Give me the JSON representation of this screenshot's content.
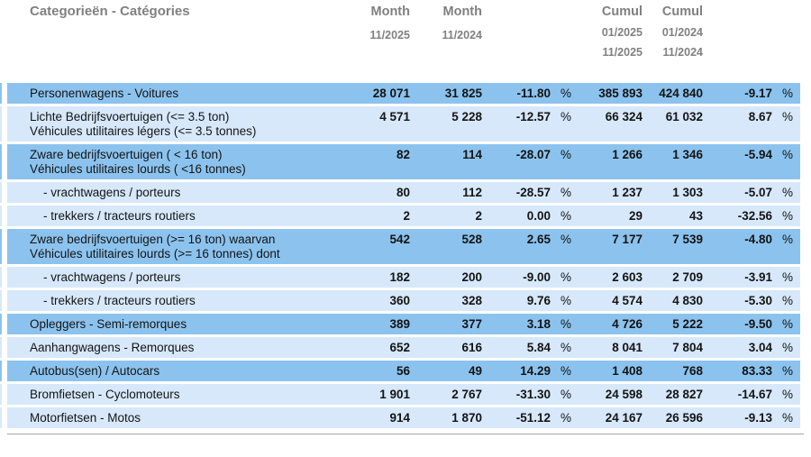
{
  "header": {
    "category_label": "Categorieën - Catégories",
    "columns": [
      {
        "label": "Month",
        "periods": [
          "11/2025"
        ]
      },
      {
        "label": "Month",
        "periods": [
          "11/2024"
        ]
      },
      {
        "label": "Cumul",
        "periods": [
          "01/2025",
          "11/2025"
        ]
      },
      {
        "label": "Cumul",
        "periods": [
          "01/2024",
          "11/2024"
        ]
      }
    ]
  },
  "table": {
    "pct_sign": "%",
    "rows": [
      {
        "shade": "dark",
        "indent": false,
        "label_lines": [
          "Personenwagens - Voitures"
        ],
        "month_current": "28 071",
        "month_prev": "31 825",
        "month_pct": "-11.80",
        "cumul_current": "385 893",
        "cumul_prev": "424 840",
        "cumul_pct": "-9.17"
      },
      {
        "shade": "light",
        "indent": false,
        "label_lines": [
          "Lichte Bedrijfsvoertuigen (<= 3.5 ton)",
          "Véhicules utilitaires légers (<= 3.5 tonnes)"
        ],
        "month_current": "4 571",
        "month_prev": "5 228",
        "month_pct": "-12.57",
        "cumul_current": "66 324",
        "cumul_prev": "61 032",
        "cumul_pct": "8.67"
      },
      {
        "shade": "dark",
        "indent": false,
        "label_lines": [
          "Zware bedrijfsvoertuigen ( < 16 ton)",
          "Véhicules utilitaires lourds ( <16 tonnes)"
        ],
        "month_current": "82",
        "month_prev": "114",
        "month_pct": "-28.07",
        "cumul_current": "1 266",
        "cumul_prev": "1 346",
        "cumul_pct": "-5.94"
      },
      {
        "shade": "light",
        "indent": true,
        "label_lines": [
          "- vrachtwagens / porteurs"
        ],
        "month_current": "80",
        "month_prev": "112",
        "month_pct": "-28.57",
        "cumul_current": "1 237",
        "cumul_prev": "1 303",
        "cumul_pct": "-5.07"
      },
      {
        "shade": "light",
        "indent": true,
        "label_lines": [
          "- trekkers / tracteurs routiers"
        ],
        "month_current": "2",
        "month_prev": "2",
        "month_pct": "0.00",
        "cumul_current": "29",
        "cumul_prev": "43",
        "cumul_pct": "-32.56"
      },
      {
        "shade": "dark",
        "indent": false,
        "label_lines": [
          "Zware bedrijfsvoertuigen (>= 16 ton) waarvan",
          "Véhicules utilitaires lourds (>= 16 tonnes) dont"
        ],
        "month_current": "542",
        "month_prev": "528",
        "month_pct": "2.65",
        "cumul_current": "7 177",
        "cumul_prev": "7 539",
        "cumul_pct": "-4.80"
      },
      {
        "shade": "light",
        "indent": true,
        "label_lines": [
          "- vrachtwagens / porteurs"
        ],
        "month_current": "182",
        "month_prev": "200",
        "month_pct": "-9.00",
        "cumul_current": "2 603",
        "cumul_prev": "2 709",
        "cumul_pct": "-3.91"
      },
      {
        "shade": "light",
        "indent": true,
        "label_lines": [
          "- trekkers / tracteurs routiers"
        ],
        "month_current": "360",
        "month_prev": "328",
        "month_pct": "9.76",
        "cumul_current": "4 574",
        "cumul_prev": "4 830",
        "cumul_pct": "-5.30"
      },
      {
        "shade": "dark",
        "indent": false,
        "label_lines": [
          "Opleggers - Semi-remorques"
        ],
        "month_current": "389",
        "month_prev": "377",
        "month_pct": "3.18",
        "cumul_current": "4 726",
        "cumul_prev": "5 222",
        "cumul_pct": "-9.50"
      },
      {
        "shade": "light",
        "indent": false,
        "label_lines": [
          "Aanhangwagens - Remorques"
        ],
        "month_current": "652",
        "month_prev": "616",
        "month_pct": "5.84",
        "cumul_current": "8 041",
        "cumul_prev": "7 804",
        "cumul_pct": "3.04"
      },
      {
        "shade": "dark",
        "indent": false,
        "label_lines": [
          "Autobus(sen) / Autocars"
        ],
        "month_current": "56",
        "month_prev": "49",
        "month_pct": "14.29",
        "cumul_current": "1 408",
        "cumul_prev": "768",
        "cumul_pct": "83.33"
      },
      {
        "shade": "light",
        "indent": false,
        "label_lines": [
          "Bromfietsen - Cyclomoteurs"
        ],
        "month_current": "1 901",
        "month_prev": "2 767",
        "month_pct": "-31.30",
        "cumul_current": "24 598",
        "cumul_prev": "28 827",
        "cumul_pct": "-14.67"
      },
      {
        "shade": "light",
        "indent": false,
        "label_lines": [
          "Motorfietsen - Motos"
        ],
        "month_current": "914",
        "month_prev": "1 870",
        "month_pct": "-51.12",
        "cumul_current": "24 167",
        "cumul_prev": "26 596",
        "cumul_pct": "-9.13"
      }
    ]
  },
  "colors": {
    "row_dark": "#8cc3ee",
    "row_light": "#d7e8fa",
    "header_text": "#808080",
    "body_text": "#141414"
  }
}
